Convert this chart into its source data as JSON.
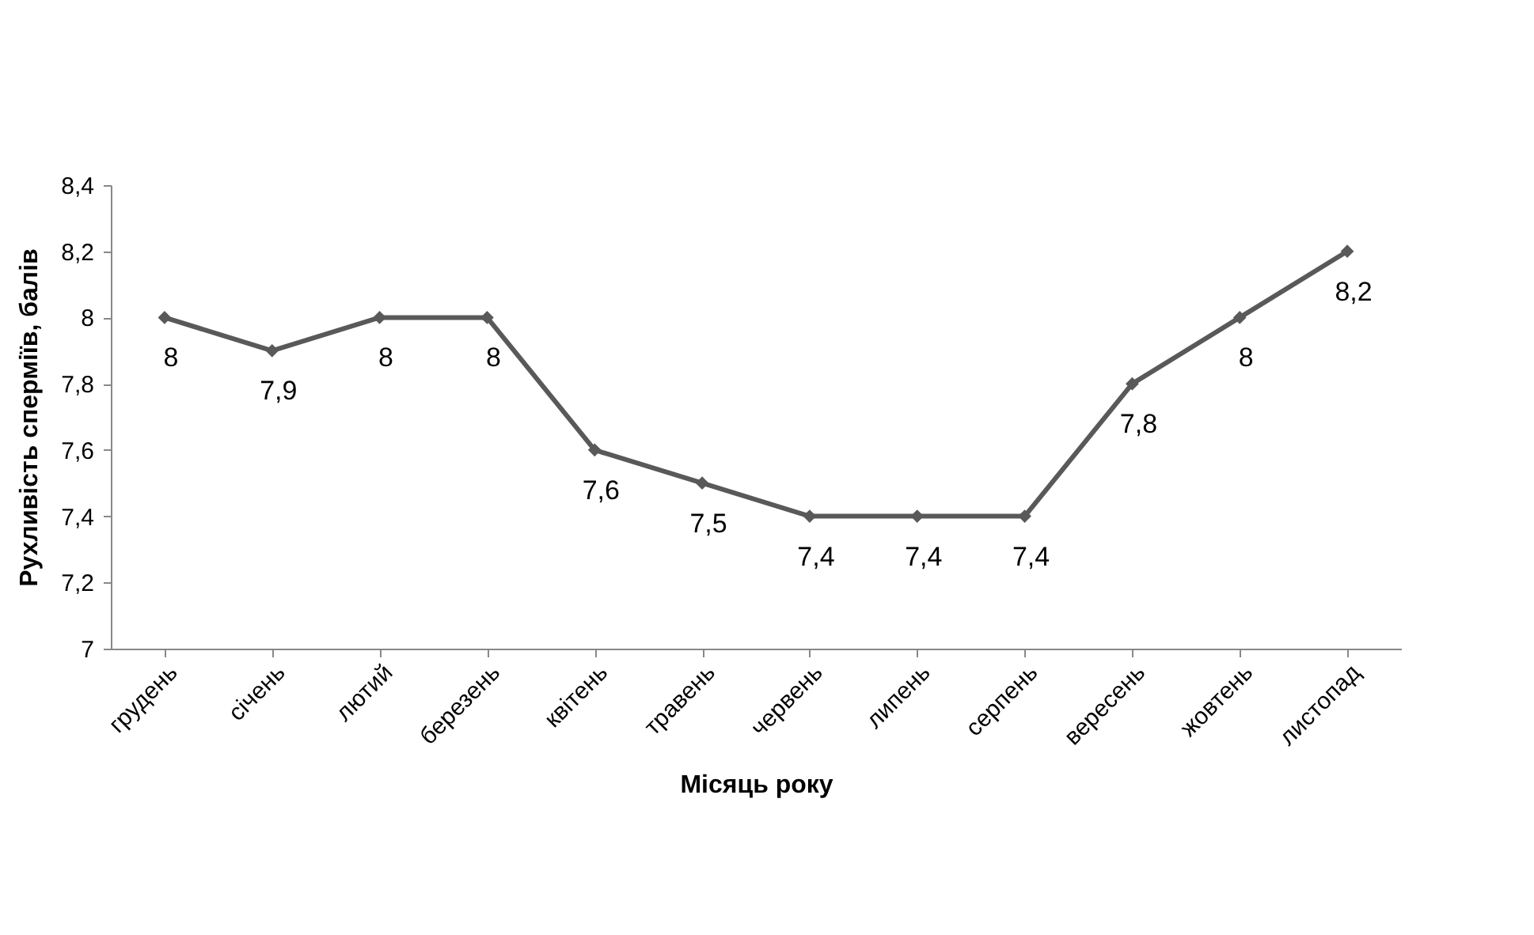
{
  "chart_data": {
    "type": "line",
    "xlabel": "Місяць року",
    "ylabel": "Рухливість сперміїв,  балів",
    "categories": [
      "грудень",
      "січень",
      "лютий",
      "березень",
      "квітень",
      "травень",
      "червень",
      "липень",
      "серпень",
      "вересень",
      "жовтень",
      "листопад"
    ],
    "series": [
      {
        "color": "#595959",
        "values": [
          8,
          7.9,
          8,
          8,
          7.6,
          7.5,
          7.4,
          7.4,
          7.4,
          7.8,
          8,
          8.2
        ],
        "value_labels": [
          "8",
          "7,9",
          "8",
          "8",
          "7,6",
          "7,5",
          "7,4",
          "7,4",
          "7,4",
          "7,8",
          "8",
          "8,2"
        ]
      }
    ],
    "ylim": [
      7,
      8.4
    ],
    "yticks": [
      7,
      {
        "value": 7.2,
        "label": "7,2"
      },
      {
        "value": 7.4,
        "label": "7,4"
      },
      {
        "value": 7.6,
        "label": "7,6"
      },
      {
        "value": 7.8,
        "label": "7,8"
      },
      8,
      {
        "value": 8.2,
        "label": "8,2"
      },
      {
        "value": 8.4,
        "label": "8,4"
      }
    ],
    "marker": "diamond",
    "line_style": "solid"
  }
}
